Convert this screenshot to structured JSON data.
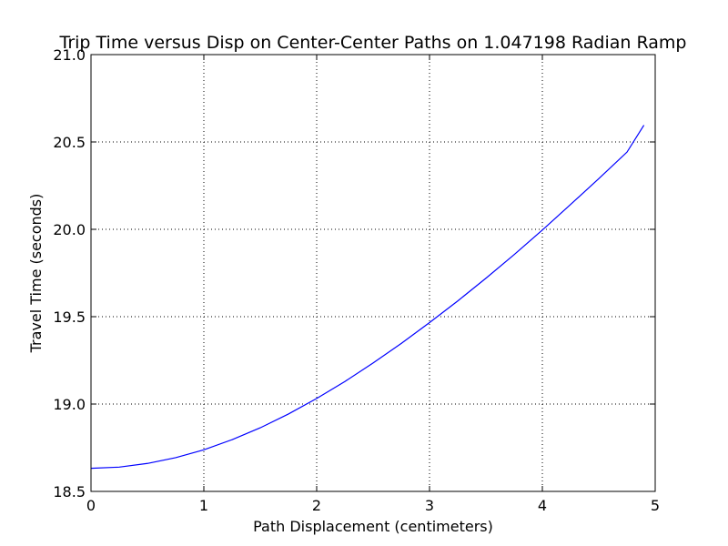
{
  "chart_data": {
    "type": "line",
    "title": "Trip Time versus Disp on Center-Center Paths on 1.047198 Radian Ramp",
    "xlabel": "Path Displacement (centimeters)",
    "ylabel": "Travel Time (seconds)",
    "xlim": [
      0,
      5
    ],
    "ylim": [
      18.5,
      21.0
    ],
    "xticks": [
      "0",
      "1",
      "2",
      "3",
      "4",
      "5"
    ],
    "yticks": [
      "18.5",
      "19.0",
      "19.5",
      "20.0",
      "20.5",
      "21.0"
    ],
    "grid": true,
    "series": [
      {
        "color": "#0000ff",
        "x": [
          0,
          0.25,
          0.5,
          0.75,
          1.0,
          1.25,
          1.5,
          1.75,
          2.0,
          2.25,
          2.5,
          2.75,
          3.0,
          3.25,
          3.5,
          3.75,
          4.0,
          4.25,
          4.5,
          4.75,
          4.9
        ],
        "y": [
          18.632,
          18.639,
          18.66,
          18.693,
          18.738,
          18.796,
          18.864,
          18.943,
          19.032,
          19.129,
          19.235,
          19.347,
          19.466,
          19.59,
          19.72,
          19.855,
          19.996,
          20.142,
          20.29,
          20.442,
          20.596
        ]
      }
    ]
  }
}
